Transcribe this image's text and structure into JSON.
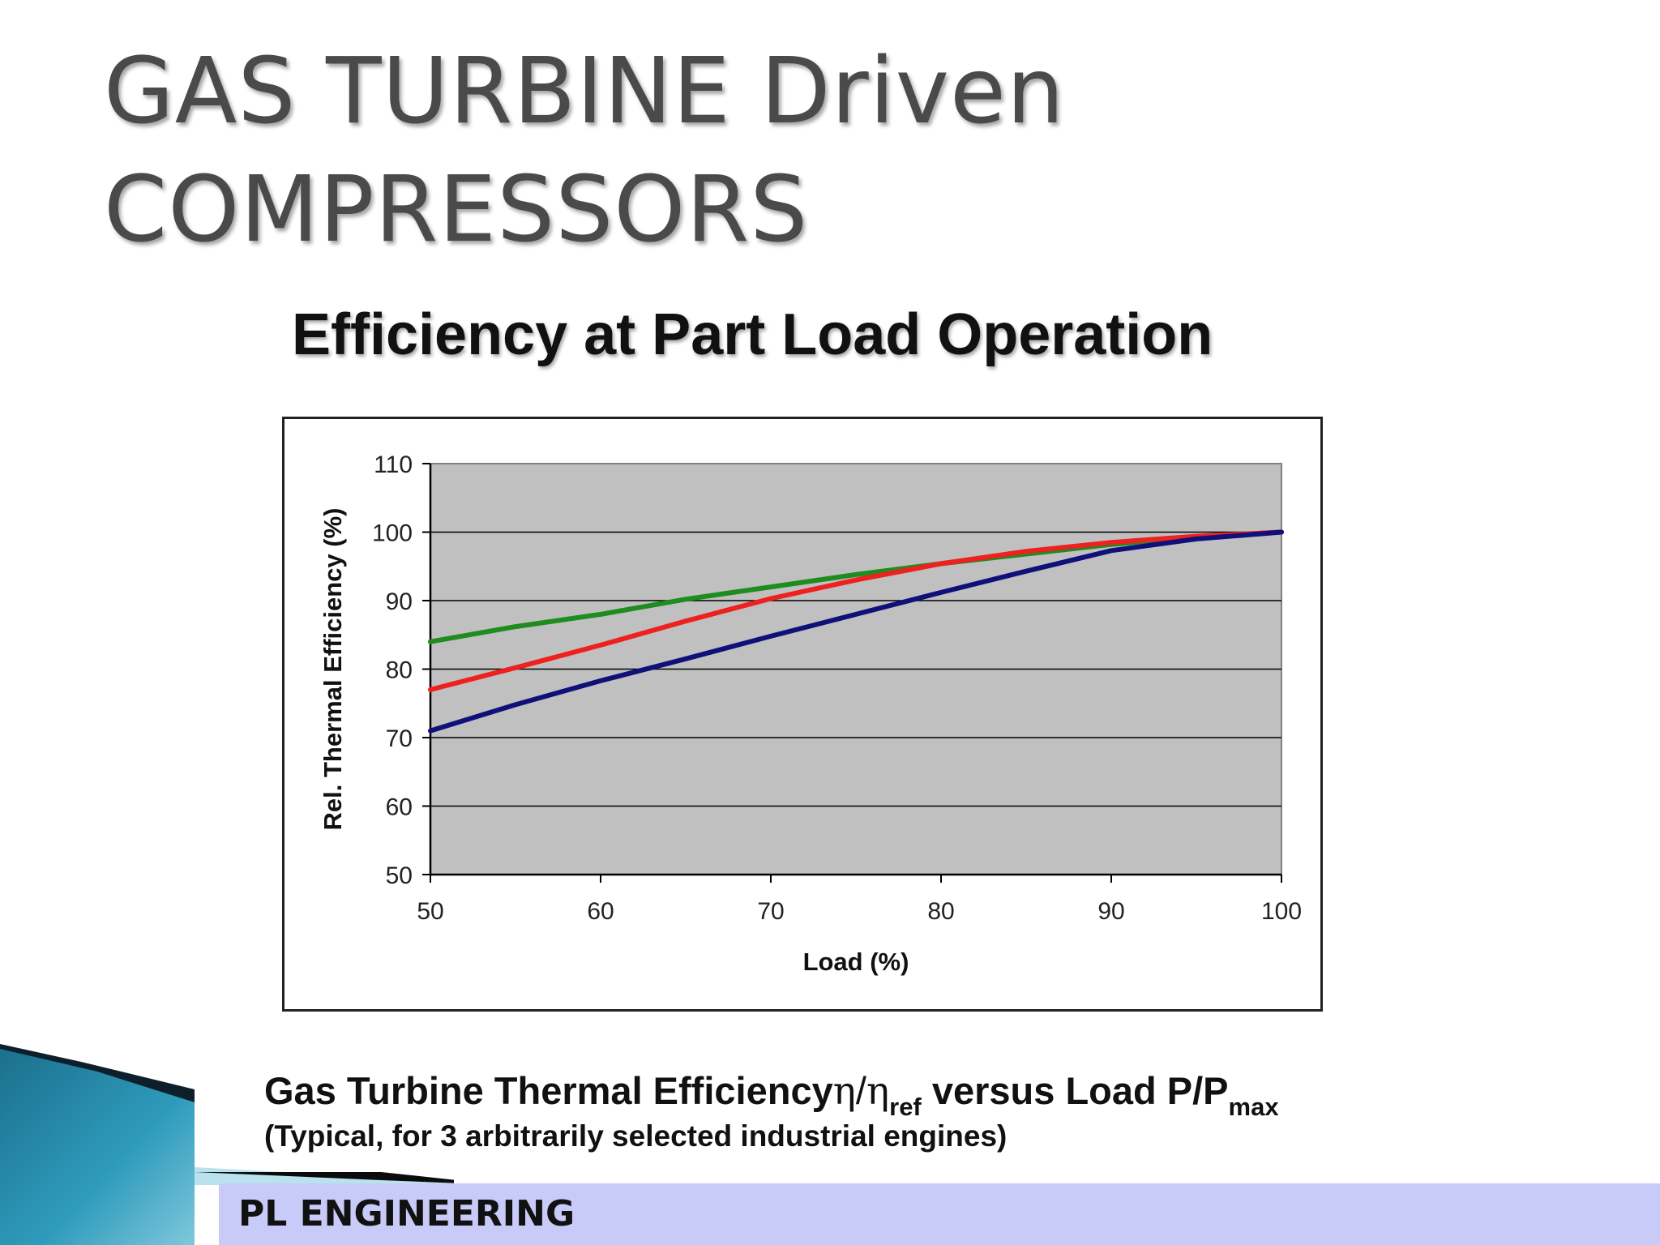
{
  "slide": {
    "title_line1": "GAS TURBINE Driven",
    "title_line2": "COMPRESSORS",
    "footer": "PL ENGINEERING"
  },
  "caption": {
    "line1_a": "Gas Turbine Thermal Efficiency",
    "eta1": "η",
    "slash": "/",
    "eta2": "η",
    "ref_sub": "ref",
    "line1_b": " versus Load P/P",
    "max_sub": "max",
    "line2": "(Typical, for 3 arbitrarily selected industrial engines)"
  },
  "colors": {
    "plot_background": "#c0c0c0",
    "gridline": "#000000",
    "green": "#1e8c1e",
    "red": "#ee2020",
    "navy": "#10107a",
    "footer_bar": "#c8caf7"
  },
  "chart_data": {
    "type": "line",
    "title": "Efficiency at Part Load Operation",
    "xlabel": "Load (%)",
    "ylabel": "Rel. Thermal Efficiency (%)",
    "xlim": [
      50,
      100
    ],
    "ylim": [
      50,
      110
    ],
    "xticks": [
      50,
      60,
      70,
      80,
      90,
      100
    ],
    "yticks": [
      50,
      60,
      70,
      80,
      90,
      100,
      110
    ],
    "grid": "horizontal",
    "legend": "none",
    "series": [
      {
        "color": "#1e8c1e",
        "x": [
          50,
          55,
          60,
          65,
          70,
          75,
          80,
          85,
          90,
          95,
          100
        ],
        "y": [
          84,
          86.2,
          88,
          90.2,
          92,
          93.8,
          95.4,
          96.8,
          98.2,
          99.3,
          100
        ]
      },
      {
        "color": "#ee2020",
        "x": [
          50,
          55,
          60,
          65,
          70,
          75,
          80,
          85,
          90,
          95,
          100
        ],
        "y": [
          77,
          80.2,
          83.5,
          87,
          90.3,
          93,
          95.4,
          97.2,
          98.5,
          99.4,
          100
        ]
      },
      {
        "color": "#10107a",
        "x": [
          50,
          55,
          60,
          65,
          70,
          75,
          80,
          85,
          90,
          95,
          100
        ],
        "y": [
          71,
          74.8,
          78.3,
          81.5,
          84.8,
          88,
          91.2,
          94.3,
          97.3,
          99,
          100
        ]
      }
    ]
  }
}
